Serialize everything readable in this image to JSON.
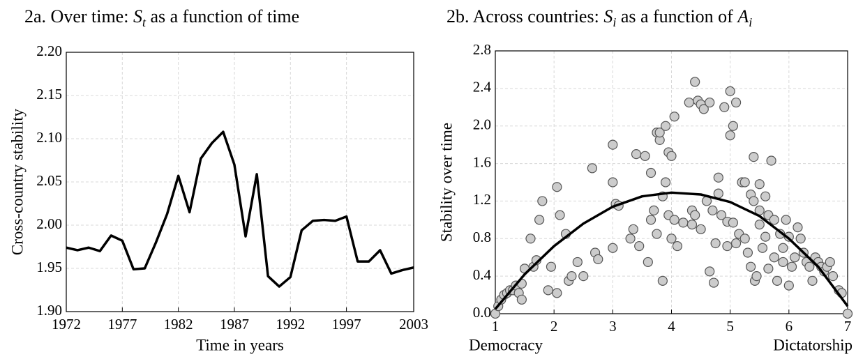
{
  "chart_data": [
    {
      "type": "line",
      "title": [
        "2a. Over time: ",
        "S",
        "t",
        " as a function of time"
      ],
      "xlabel": "Time in years",
      "ylabel": "Cross-country stability",
      "x": [
        1972,
        1973,
        1974,
        1975,
        1976,
        1977,
        1978,
        1979,
        1980,
        1981,
        1982,
        1983,
        1984,
        1985,
        1986,
        1987,
        1988,
        1989,
        1990,
        1991,
        1992,
        1993,
        1994,
        1995,
        1996,
        1997,
        1998,
        1999,
        2000,
        2001,
        2002,
        2003
      ],
      "values": [
        1.974,
        1.971,
        1.974,
        1.97,
        1.988,
        1.982,
        1.949,
        1.95,
        1.98,
        2.013,
        2.057,
        2.015,
        2.077,
        2.095,
        2.108,
        2.07,
        1.987,
        2.059,
        1.941,
        1.929,
        1.94,
        1.994,
        2.005,
        2.006,
        2.005,
        2.01,
        1.958,
        1.958,
        1.971,
        1.944,
        1.948,
        1.951
      ],
      "color": "#000000",
      "xlim": [
        1972,
        2003
      ],
      "xticks": [
        1972,
        1977,
        1982,
        1987,
        1992,
        1997,
        2003
      ],
      "ylim": [
        1.9,
        2.2
      ],
      "yticks": [
        {
          "value": 1.9,
          "label": "1.90"
        },
        {
          "value": 1.95,
          "label": "1.95"
        },
        {
          "value": 2.0,
          "label": "2.00"
        },
        {
          "value": 2.05,
          "label": "2.05"
        },
        {
          "value": 2.1,
          "label": "2.10"
        },
        {
          "value": 2.15,
          "label": "2.15"
        },
        {
          "value": 2.2,
          "label": "2.20"
        }
      ],
      "grid": true
    },
    {
      "type": "scatter",
      "title": [
        "2b.  Across countries: ",
        "S",
        "i",
        " as a function of ",
        "A",
        "i"
      ],
      "ylabel": "Stability over time",
      "annotations": [
        "Democracy",
        "Dictatorship"
      ],
      "points": {
        "color": "#cccccc",
        "x": [
          1.0,
          1.05,
          1.1,
          1.15,
          1.2,
          1.25,
          1.3,
          1.35,
          1.4,
          1.45,
          1.45,
          1.5,
          1.6,
          1.65,
          1.7,
          1.75,
          1.8,
          1.9,
          1.95,
          2.05,
          2.05,
          2.1,
          2.2,
          2.25,
          2.3,
          2.4,
          2.5,
          2.65,
          2.7,
          2.75,
          3.0,
          3.0,
          3.0,
          3.05,
          3.1,
          3.3,
          3.35,
          3.4,
          3.45,
          3.55,
          3.6,
          3.65,
          3.65,
          3.7,
          3.75,
          3.75,
          3.8,
          3.8,
          3.85,
          3.85,
          3.9,
          3.9,
          3.95,
          3.95,
          4.0,
          4.0,
          4.05,
          4.05,
          4.1,
          4.2,
          4.3,
          4.35,
          4.35,
          4.4,
          4.4,
          4.45,
          4.5,
          4.5,
          4.55,
          4.6,
          4.65,
          4.65,
          4.7,
          4.72,
          4.75,
          4.8,
          4.8,
          4.85,
          4.9,
          4.95,
          4.95,
          5.0,
          5.0,
          5.05,
          5.05,
          5.1,
          5.1,
          5.15,
          5.2,
          5.25,
          5.25,
          5.3,
          5.35,
          5.35,
          5.4,
          5.4,
          5.42,
          5.45,
          5.5,
          5.5,
          5.5,
          5.55,
          5.6,
          5.6,
          5.65,
          5.65,
          5.7,
          5.75,
          5.75,
          5.8,
          5.85,
          5.9,
          5.9,
          5.95,
          6.0,
          6.0,
          6.05,
          6.1,
          6.15,
          6.2,
          6.25,
          6.3,
          6.35,
          6.4,
          6.45,
          6.5,
          6.55,
          6.6,
          6.65,
          6.7,
          6.75,
          6.85,
          6.9,
          7.0
        ],
        "y": [
          0.0,
          0.08,
          0.15,
          0.2,
          0.22,
          0.25,
          0.25,
          0.3,
          0.22,
          0.15,
          0.32,
          0.48,
          0.8,
          0.5,
          0.57,
          1.0,
          1.2,
          0.25,
          0.5,
          1.35,
          0.22,
          1.05,
          0.85,
          0.35,
          0.4,
          0.55,
          0.4,
          1.55,
          0.65,
          0.58,
          1.8,
          1.4,
          0.7,
          1.17,
          1.15,
          0.8,
          0.9,
          1.7,
          0.72,
          1.68,
          0.55,
          1.5,
          1.0,
          1.1,
          0.85,
          1.93,
          1.85,
          1.93,
          1.25,
          0.35,
          2.0,
          1.4,
          1.05,
          1.72,
          1.68,
          0.8,
          2.1,
          1.0,
          0.72,
          0.97,
          2.25,
          0.95,
          1.1,
          1.05,
          2.47,
          2.27,
          2.23,
          0.9,
          2.18,
          1.2,
          2.25,
          0.45,
          1.1,
          0.33,
          0.75,
          1.45,
          1.28,
          1.05,
          2.2,
          0.72,
          0.98,
          2.37,
          1.9,
          0.97,
          2.0,
          2.25,
          0.75,
          0.85,
          1.4,
          1.4,
          0.8,
          0.65,
          0.5,
          1.27,
          1.2,
          1.67,
          0.35,
          0.4,
          0.95,
          1.38,
          1.1,
          0.7,
          0.82,
          1.25,
          1.05,
          0.48,
          1.63,
          0.6,
          1.0,
          0.35,
          0.85,
          0.55,
          0.7,
          1.0,
          0.3,
          0.82,
          0.5,
          0.6,
          0.92,
          0.8,
          0.65,
          0.55,
          0.5,
          0.35,
          0.6,
          0.55,
          0.5,
          0.45,
          0.5,
          0.55,
          0.4,
          0.25,
          0.22,
          0.0
        ]
      },
      "fit": {
        "color": "#000000",
        "x": [
          1.0,
          1.5,
          2.0,
          2.5,
          3.0,
          3.5,
          4.0,
          4.5,
          5.0,
          5.5,
          6.0,
          6.5,
          7.0
        ],
        "values": [
          0.05,
          0.42,
          0.72,
          0.96,
          1.14,
          1.25,
          1.29,
          1.27,
          1.19,
          1.04,
          0.8,
          0.5,
          0.08
        ]
      },
      "xlim": [
        1,
        7
      ],
      "xticks": [
        1,
        2,
        3,
        4,
        5,
        6,
        7
      ],
      "ylim": [
        0,
        2.8
      ],
      "yticks": [
        {
          "value": 0,
          "label": "0.0"
        },
        0.4,
        0.8,
        1.2,
        1.6,
        {
          "value": 2.0,
          "label": "2.0"
        },
        2.4,
        2.8
      ],
      "grid": true
    }
  ]
}
